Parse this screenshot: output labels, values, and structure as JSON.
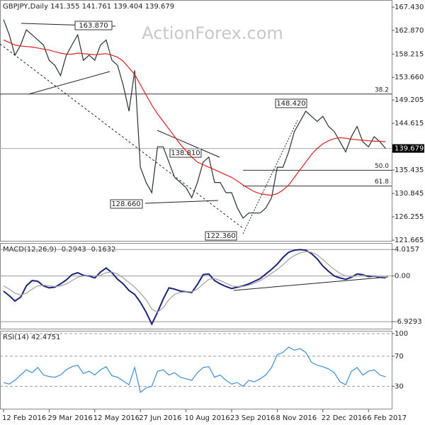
{
  "watermark": "ActionForex.com",
  "chart_data": [
    {
      "type": "line",
      "title": "GBPJPY,Daily 141.355 141.761 139.404 139.679",
      "categories": [
        "12 Feb 2016",
        null,
        null,
        null,
        null,
        null,
        null,
        null,
        "29 Mar 2016",
        null,
        null,
        null,
        null,
        null,
        null,
        null,
        "12 May 2016",
        null,
        null,
        null,
        null,
        null,
        null,
        null,
        "27 Jun 2016",
        null,
        null,
        null,
        null,
        null,
        null,
        null,
        "10 Aug 2016",
        null,
        null,
        null,
        null,
        null,
        null,
        null,
        "23 Sep 2016",
        null,
        null,
        null,
        null,
        null,
        null,
        null,
        "8 Nov 2016",
        null,
        null,
        null,
        null,
        null,
        null,
        null,
        "22 Dec 2016",
        null,
        null,
        null,
        null,
        null,
        null,
        null,
        "6 Feb 2017",
        null,
        null,
        null
      ],
      "series": [
        {
          "color": "#24352c",
          "values": [
            165,
            162,
            158,
            160,
            163,
            162,
            161,
            160,
            157,
            156,
            154,
            158,
            160,
            162,
            157,
            158,
            157,
            160,
            161,
            157,
            156,
            152,
            147,
            155,
            136,
            133,
            131,
            140,
            140,
            137,
            134,
            133,
            132,
            130,
            133,
            137,
            138,
            133,
            133,
            131,
            131,
            128,
            126,
            127,
            127,
            127,
            128,
            130,
            136,
            136,
            139,
            143,
            145,
            147,
            146,
            145,
            146,
            144,
            143,
            141,
            139,
            142,
            144,
            141,
            140,
            142,
            141,
            139.679
          ]
        },
        {
          "color": "#e02020",
          "values": [
            161,
            160.5,
            160,
            159.8,
            159.7,
            159.6,
            159.4,
            159.2,
            159,
            158.7,
            158.4,
            158.2,
            158.2,
            158.4,
            158.3,
            158.2,
            158.1,
            158.2,
            158.3,
            158,
            157.6,
            156.8,
            155.5,
            154.2,
            152.2,
            150.2,
            148.2,
            146.5,
            145,
            143.5,
            142,
            140.5,
            139.2,
            138,
            137,
            136.5,
            136,
            135.5,
            135,
            134.5,
            134,
            133.3,
            132.5,
            131.8,
            131.2,
            130.8,
            130.6,
            130.5,
            130.8,
            131.5,
            132.5,
            134,
            135.5,
            137,
            138.5,
            139.7,
            140.6,
            141.2,
            141.6,
            141.8,
            141.7,
            141.5,
            141.4,
            141.3,
            141.2,
            141.1,
            141.1,
            141
          ]
        }
      ],
      "last_price": 139.679,
      "fib_levels": [
        {
          "label": "38.2",
          "value": 150.37
        },
        {
          "label": "50.0",
          "value": 135.4
        },
        {
          "label": "61.8",
          "value": 132.3
        }
      ],
      "annotations": [
        "163.870",
        "148.420",
        "138.810",
        "128.660",
        "122.360"
      ],
      "ylim": [
        121.4,
        168.7
      ],
      "yticks": [
        {
          "value": 167.43,
          "label": "167.430"
        },
        {
          "value": 162.87,
          "label": "162.870"
        },
        158.215,
        {
          "value": 153.66,
          "label": "153.660"
        },
        149.205,
        144.615,
        135.435,
        130.845,
        126.255,
        121.665
      ],
      "grid": false
    },
    {
      "type": "line",
      "title": "MACD(12,26,9) -0.2943 -0.1632",
      "series": [
        {
          "color": "#1a237e",
          "values": [
            -2.3,
            -3.0,
            -3.8,
            -3.2,
            -1.5,
            -0.7,
            -0.8,
            -1.5,
            -1.8,
            -1.7,
            -1.2,
            -0.6,
            0.2,
            0.5,
            0.1,
            0,
            -0.3,
            0.6,
            1.2,
            0.5,
            -0.5,
            -1.2,
            -2.2,
            -2.8,
            -4.0,
            -5.5,
            -7.3,
            -5.5,
            -3.5,
            -1.8,
            -2.0,
            -2.3,
            -2.4,
            -2.5,
            -1.3,
            0.2,
            0.3,
            -0.7,
            -1.2,
            -1.6,
            -1.9,
            -1.7,
            -1.5,
            -1.2,
            -0.8,
            -0.4,
            0.3,
            1.0,
            1.8,
            2.8,
            3.6,
            3.9,
            4.0,
            3.9,
            3.4,
            2.6,
            1.5,
            0.7,
            0.0,
            -0.3,
            -0.5,
            -0.2,
            0.3,
            0.2,
            -0.1,
            0.0,
            -0.2,
            -0.2943
          ]
        },
        {
          "color": "#a0a0a0",
          "values": [
            -1.5,
            -2.0,
            -2.6,
            -2.9,
            -2.6,
            -2.0,
            -1.5,
            -1.4,
            -1.5,
            -1.6,
            -1.5,
            -1.2,
            -0.7,
            -0.2,
            0,
            0.1,
            0,
            0.1,
            0.5,
            0.6,
            0.3,
            -0.3,
            -1.0,
            -1.7,
            -2.6,
            -3.6,
            -5.0,
            -5.5,
            -4.8,
            -3.6,
            -2.8,
            -2.5,
            -2.4,
            -2.4,
            -2.0,
            -1.2,
            -0.5,
            -0.4,
            -0.7,
            -1.1,
            -1.5,
            -1.6,
            -1.6,
            -1.4,
            -1.1,
            -0.7,
            -0.2,
            0.4,
            1.0,
            1.7,
            2.5,
            3.1,
            3.5,
            3.7,
            3.6,
            3.2,
            2.5,
            1.7,
            1.0,
            0.4,
            0.0,
            -0.1,
            0.0,
            0.1,
            0.1,
            0.0,
            -0.1,
            -0.1632
          ]
        }
      ],
      "ylim": [
        -8.1,
        4.9
      ],
      "yticks": [
        4.0157,
        {
          "value": 0,
          "label": "0.00"
        },
        -6.9293
      ],
      "grid": true
    },
    {
      "type": "line",
      "title": "RSI(14) 42.4751",
      "series": [
        {
          "color": "#3a8fd8",
          "values": [
            35,
            33,
            38,
            45,
            52,
            48,
            55,
            45,
            43,
            42,
            45,
            52,
            56,
            58,
            47,
            50,
            45,
            52,
            56,
            44,
            42,
            37,
            32,
            55,
            22,
            28,
            30,
            50,
            52,
            45,
            48,
            42,
            40,
            38,
            48,
            55,
            56,
            42,
            45,
            38,
            33,
            35,
            30,
            38,
            36,
            40,
            45,
            55,
            72,
            75,
            82,
            78,
            80,
            75,
            62,
            58,
            56,
            53,
            48,
            36,
            32,
            50,
            55,
            45,
            50,
            52,
            45,
            42.4751
          ]
        }
      ],
      "ylim": [
        -0.7,
        102.8
      ],
      "yticks": [
        100,
        70,
        30
      ],
      "grid": true
    }
  ]
}
